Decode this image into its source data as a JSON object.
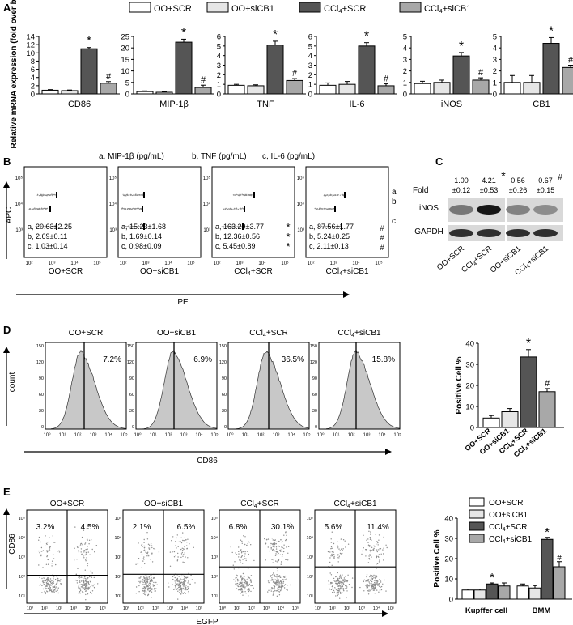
{
  "colors": {
    "oo_scr": "#ffffff",
    "oo_sicb1": "#e6e6e6",
    "ccl4_scr": "#555555",
    "ccl4_sicb1": "#a8a8a8",
    "hist_fill": "#c8c8c8",
    "dots": "#8c8c8c"
  },
  "legend": [
    "OO+SCR",
    "OO+siCB1",
    "CCl4+SCR",
    "CCl4+siCB1"
  ],
  "panels": {
    "A": {
      "letter": "A",
      "ylabel": "Relative mRNA expression (fold over basal)",
      "charts": [
        {
          "gene": "CD86",
          "ymax": 14,
          "ticks": [
            0,
            2,
            4,
            6,
            8,
            10,
            12,
            14
          ]
        },
        {
          "gene": "MIP-1β",
          "ymax": 25,
          "ticks": [
            0,
            5,
            10,
            15,
            20,
            25
          ]
        },
        {
          "gene": "TNF",
          "ymax": 6,
          "ticks": [
            0,
            1,
            2,
            3,
            4,
            5,
            6
          ]
        },
        {
          "gene": "IL-6",
          "ymax": 6,
          "ticks": [
            0,
            1,
            2,
            3,
            4,
            5,
            6
          ]
        },
        {
          "gene": "iNOS",
          "ymax": 5,
          "ticks": [
            0,
            1,
            2,
            3,
            4,
            5
          ]
        },
        {
          "gene": "CB1",
          "ymax": 5,
          "ticks": [
            0,
            1,
            2,
            3,
            4,
            5
          ]
        }
      ]
    },
    "B": {
      "letter": "B",
      "header": [
        "a, MIP-1β (pg/mL)",
        "b, TNF (pg/mL)",
        "c, IL-6 (pg/mL)"
      ],
      "ylabel": "APC",
      "xlabel": "PE",
      "row_letters": [
        "a",
        "b",
        "c"
      ],
      "plots": [
        {
          "label": "OO+SCR",
          "lines": [
            "a, 20.63±2.25",
            "b, 2.69±0.11",
            "c, 1.03±0.14"
          ],
          "marks": [
            "",
            "",
            ""
          ]
        },
        {
          "label": "OO+siCB1",
          "lines": [
            "a, 15.23±1.68",
            "b, 1.69±0.14",
            "c, 0.98±0.09"
          ],
          "marks": [
            "",
            "",
            ""
          ]
        },
        {
          "label": "CCl4+SCR",
          "lines": [
            "a, 163.29±3.77",
            "b, 12.36±0.56",
            "c, 5.45±0.89"
          ],
          "marks": [
            "*",
            "*",
            "*"
          ]
        },
        {
          "label": "CCl4+siCB1",
          "lines": [
            "a, 87.56±1.77",
            "b, 5.24±0.25",
            "c, 2.11±0.13"
          ],
          "marks": [
            "#",
            "#",
            "#"
          ]
        }
      ]
    },
    "C": {
      "letter": "C",
      "fold_label": "Fold",
      "folds": [
        "1.00",
        "4.21",
        "0.56",
        "0.67"
      ],
      "errs": [
        "±0.12",
        "±0.53",
        "±0.26",
        "±0.15"
      ],
      "marks": [
        "",
        "*",
        "",
        "#"
      ],
      "bands": [
        "iNOS",
        "GAPDH"
      ],
      "lanes": [
        "OO+SCR",
        "CCl4+SCR",
        "OO+siCB1",
        "CCl4+siCB1"
      ]
    },
    "D": {
      "letter": "D",
      "titles": [
        "OO+SCR",
        "OO+siCB1",
        "CCl4+SCR",
        "CCl4+siCB1"
      ],
      "percents": [
        "7.2%",
        "6.9%",
        "36.5%",
        "15.8%"
      ],
      "ylabel": "count",
      "xlabel": "CD86",
      "y_ticks": [
        "150",
        "120",
        "90",
        "60",
        "30",
        "0"
      ],
      "x_ticks": [
        "10⁰",
        "10¹",
        "10²",
        "10³",
        "10⁴",
        "10⁵"
      ],
      "bar_ylabel": "Positive Cell %",
      "bar_ticks": [
        0,
        10,
        20,
        30,
        40
      ]
    },
    "E": {
      "letter": "E",
      "titles": [
        "OO+SCR",
        "OO+siCB1",
        "CCl4+SCR",
        "CCl4+siCB1"
      ],
      "q_left": [
        "3.2%",
        "2.1%",
        "6.8%",
        "5.6%"
      ],
      "q_right": [
        "4.5%",
        "6.5%",
        "30.1%",
        "11.4%"
      ],
      "ylabel": "CD86",
      "xlabel": "EGFP",
      "bar_ylabel": "Positive Cell %",
      "bar_ticks": [
        0,
        10,
        20,
        30,
        40
      ],
      "groups": [
        "Kupffer cell",
        "BMM"
      ]
    }
  },
  "chart_data": [
    {
      "type": "bar",
      "title": "CD86",
      "ylabel": "Relative mRNA expression (fold over basal)",
      "ylim": [
        0,
        14
      ],
      "categories": [
        "OO+SCR",
        "OO+siCB1",
        "CCl4+SCR",
        "CCl4+siCB1"
      ],
      "values": [
        0.9,
        0.8,
        11,
        2.6
      ],
      "errors": [
        0.15,
        0.15,
        0.3,
        0.4
      ],
      "annotations": [
        "",
        "",
        "*",
        "#"
      ]
    },
    {
      "type": "bar",
      "title": "MIP-1β",
      "ylim": [
        0,
        25
      ],
      "categories": [
        "OO+SCR",
        "OO+siCB1",
        "CCl4+SCR",
        "CCl4+siCB1"
      ],
      "values": [
        1.0,
        0.7,
        22.5,
        2.8
      ],
      "errors": [
        0.3,
        0.3,
        1.3,
        1.0
      ],
      "annotations": [
        "",
        "",
        "*",
        "#"
      ]
    },
    {
      "type": "bar",
      "title": "TNF",
      "ylim": [
        0,
        6
      ],
      "categories": [
        "OO+SCR",
        "OO+siCB1",
        "CCl4+SCR",
        "CCl4+siCB1"
      ],
      "values": [
        0.9,
        0.85,
        5.1,
        1.4
      ],
      "errors": [
        0.1,
        0.1,
        0.4,
        0.2
      ],
      "annotations": [
        "",
        "",
        "*",
        "#"
      ]
    },
    {
      "type": "bar",
      "title": "IL-6",
      "ylim": [
        0,
        6
      ],
      "categories": [
        "OO+SCR",
        "OO+siCB1",
        "CCl4+SCR",
        "CCl4+siCB1"
      ],
      "values": [
        0.9,
        1.0,
        5.0,
        0.85
      ],
      "errors": [
        0.25,
        0.3,
        0.35,
        0.2
      ],
      "annotations": [
        "",
        "",
        "*",
        "#"
      ]
    },
    {
      "type": "bar",
      "title": "iNOS",
      "ylim": [
        0,
        5
      ],
      "categories": [
        "OO+SCR",
        "OO+siCB1",
        "CCl4+SCR",
        "CCl4+siCB1"
      ],
      "values": [
        0.9,
        1.0,
        3.3,
        1.2
      ],
      "errors": [
        0.2,
        0.2,
        0.3,
        0.2
      ],
      "annotations": [
        "",
        "",
        "*",
        "#"
      ]
    },
    {
      "type": "bar",
      "title": "CB1",
      "ylim": [
        0,
        5
      ],
      "categories": [
        "OO+SCR",
        "OO+siCB1",
        "CCl4+SCR",
        "CCl4+siCB1"
      ],
      "values": [
        1.0,
        1.0,
        4.4,
        2.3
      ],
      "errors": [
        0.6,
        0.6,
        0.5,
        0.2
      ],
      "annotations": [
        "",
        "",
        "*",
        "#"
      ]
    },
    {
      "type": "bar",
      "title": "CD86 Positive Cell %",
      "ylabel": "Positive Cell %",
      "ylim": [
        0,
        40
      ],
      "categories": [
        "OO+SCR",
        "OO+siCB1",
        "CCl4+SCR",
        "CCl4+siCB1"
      ],
      "values": [
        4.5,
        7.5,
        33.5,
        17
      ],
      "errors": [
        1.2,
        1.5,
        3.5,
        1.5
      ],
      "annotations": [
        "",
        "",
        "*",
        "#"
      ]
    },
    {
      "type": "bar",
      "title": "CD86+EGFP+ Positive Cell %",
      "ylabel": "Positive Cell %",
      "ylim": [
        0,
        40
      ],
      "categories": [
        "Kupffer cell",
        "BMM"
      ],
      "series": [
        {
          "name": "OO+SCR",
          "values": [
            4.5,
            6.5
          ],
          "errors": [
            0.5,
            1.0
          ]
        },
        {
          "name": "OO+siCB1",
          "values": [
            4.5,
            5.5
          ],
          "errors": [
            0.5,
            1.2
          ]
        },
        {
          "name": "CCl4+SCR",
          "values": [
            7.5,
            29.5
          ],
          "errors": [
            0.5,
            1.0
          ]
        },
        {
          "name": "CCl4+siCB1",
          "values": [
            6.5,
            16
          ],
          "errors": [
            1.5,
            2.5
          ]
        }
      ],
      "annotations": {
        "Kupffer cell": [
          "",
          "",
          "*",
          ""
        ],
        "BMM": [
          "",
          "",
          "*",
          "#"
        ]
      }
    }
  ]
}
